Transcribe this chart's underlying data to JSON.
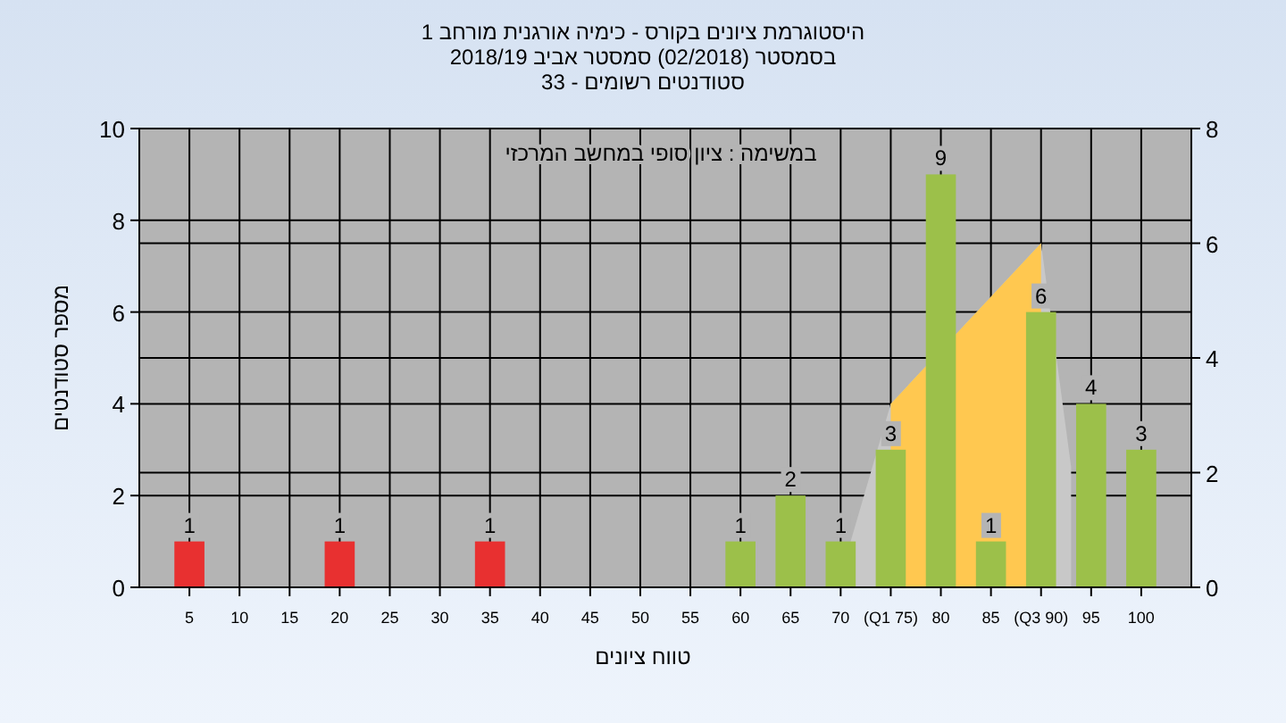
{
  "chart_data": {
    "type": "bar",
    "title": "היסטוגרמת ציונים בקורס - כימיה אורגנית מורחב 1",
    "subtitle": "בסמסטר  (02/2018)  סמסטר אביב 2018/19",
    "annotations": [
      "סטודנטים רשומים - 33",
      "במשימה : ציון סופי במחשב המרכזי"
    ],
    "xlabel": "טווח ציונים",
    "ylabel": "מספר סטודנטים",
    "x": [
      5,
      20,
      35,
      60,
      65,
      70,
      75,
      80,
      85,
      90,
      95,
      100
    ],
    "series": [
      {
        "type": "area",
        "axis": "y2",
        "x": [
          71,
          75,
          90,
          93
        ],
        "values": [
          0.8,
          3.2,
          6,
          2.1
        ],
        "color": "#c8c8c8"
      },
      {
        "type": "area",
        "axis": "y2",
        "x": [
          75,
          90
        ],
        "values": [
          3.2,
          6
        ],
        "color": "#ffc850"
      },
      {
        "values": [
          1,
          1,
          1,
          1,
          2,
          1,
          3,
          9,
          1,
          6,
          4,
          3
        ],
        "value_labels": [
          "1",
          "1",
          "1",
          "1",
          "2",
          "1",
          "3",
          "9",
          "1",
          "6",
          "4",
          "3"
        ],
        "colors": [
          "#e83030",
          "#e83030",
          "#e83030",
          "#9cc04a",
          "#9cc04a",
          "#9cc04a",
          "#9cc04a",
          "#9cc04a",
          "#9cc04a",
          "#9cc04a",
          "#9cc04a",
          "#9cc04a"
        ]
      }
    ],
    "xlim": [
      0,
      105
    ],
    "xticks": [
      5,
      10,
      15,
      20,
      25,
      30,
      35,
      40,
      45,
      50,
      55,
      60,
      65,
      70,
      {
        "value": 75,
        "label": "(Q1 75)"
      },
      80,
      85,
      {
        "value": 90,
        "label": "(Q3 90)"
      },
      95,
      100
    ],
    "ylim": [
      0,
      10
    ],
    "yticks": [
      0,
      2,
      4,
      6,
      8,
      10
    ],
    "y2lim": [
      0,
      8
    ],
    "y2ticks": [
      0,
      2,
      4,
      6,
      8
    ],
    "grid": true
  }
}
